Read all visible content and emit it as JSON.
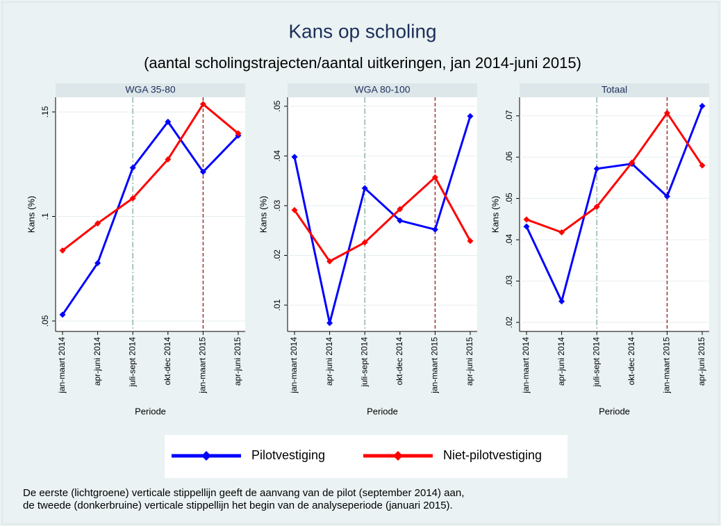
{
  "title": "Kans op scholing",
  "subtitle": "(aantal scholingstrajecten/aantal uitkeringen, jan 2014-juni 2015)",
  "note": [
    "De eerste (lichtgroene) verticale stippellijn geeft de aanvang van de pilot (september 2014) aan,",
    "de tweede (donkerbruine) verticale stippellijn het begin van de analyseperiode (januari 2015)."
  ],
  "chart_data": [
    {
      "type": "line",
      "title": "WGA 35-80",
      "xlabel": "Periode",
      "ylabel": "Kans (%)",
      "categories": [
        "jan-maart 2014",
        "apr-juni 2014",
        "juli-sept 2014",
        "okt-dec 2014",
        "jan-maart 2015",
        "apr-juni 2015"
      ],
      "series": [
        {
          "name": "Pilotvestiging",
          "color": "#0000ff",
          "values": [
            0.053,
            0.0777,
            0.1233,
            0.1453,
            0.1213,
            0.1387
          ]
        },
        {
          "name": "Niet-pilotvestiging",
          "color": "#ff0000",
          "values": [
            0.0837,
            0.0967,
            0.1087,
            0.1273,
            0.1537,
            0.1397
          ]
        }
      ],
      "ylim": [
        0.045,
        0.157
      ],
      "yticks": [
        {
          "value": 0.05,
          "label": ".05"
        },
        {
          "value": 0.1,
          "label": ".1"
        },
        {
          "value": 0.15,
          "label": ".15"
        }
      ],
      "grid": true,
      "vlines": [
        {
          "at": "juli-sept 2014",
          "color": "#7fa89c",
          "style": "dashdot"
        },
        {
          "at": "jan-maart 2015",
          "color": "#8b1a1a",
          "style": "dash"
        }
      ]
    },
    {
      "type": "line",
      "title": "WGA 80-100",
      "xlabel": "Periode",
      "ylabel": "Kans (%)",
      "categories": [
        "jan-maart 2014",
        "apr-juni 2014",
        "juli-sept 2014",
        "okt-dec 2014",
        "jan-maart 2015",
        "apr-juni 2015"
      ],
      "series": [
        {
          "name": "Pilotvestiging",
          "color": "#0000ff",
          "values": [
            0.0398,
            0.0064,
            0.0335,
            0.027,
            0.0252,
            0.048
          ]
        },
        {
          "name": "Niet-pilotvestiging",
          "color": "#ff0000",
          "values": [
            0.0291,
            0.0188,
            0.0226,
            0.0293,
            0.0357,
            0.0229
          ]
        }
      ],
      "ylim": [
        0.0047,
        0.0518
      ],
      "yticks": [
        {
          "value": 0.01,
          "label": ".01"
        },
        {
          "value": 0.02,
          "label": ".02"
        },
        {
          "value": 0.03,
          "label": ".03"
        },
        {
          "value": 0.04,
          "label": ".04"
        },
        {
          "value": 0.05,
          "label": ".05"
        }
      ],
      "grid": true,
      "vlines": [
        {
          "at": "juli-sept 2014",
          "color": "#7fa89c",
          "style": "dashdot"
        },
        {
          "at": "jan-maart 2015",
          "color": "#8b1a1a",
          "style": "dash"
        }
      ]
    },
    {
      "type": "line",
      "title": "Totaal",
      "xlabel": "Periode",
      "ylabel": "Kans (%)",
      "categories": [
        "jan-maart 2014",
        "apr-juni 2014",
        "juli-sept 2014",
        "okt-dec 2014",
        "jan-maart 2015",
        "apr-juni 2015"
      ],
      "series": [
        {
          "name": "Pilotvestiging",
          "color": "#0000ff",
          "values": [
            0.0432,
            0.0251,
            0.0572,
            0.0584,
            0.0505,
            0.0724
          ]
        },
        {
          "name": "Niet-pilotvestiging",
          "color": "#ff0000",
          "values": [
            0.0449,
            0.0418,
            0.048,
            0.0587,
            0.0707,
            0.058
          ]
        }
      ],
      "ylim": [
        0.0178,
        0.0745
      ],
      "yticks": [
        {
          "value": 0.02,
          "label": ".02"
        },
        {
          "value": 0.03,
          "label": ".03"
        },
        {
          "value": 0.04,
          "label": ".04"
        },
        {
          "value": 0.05,
          "label": ".05"
        },
        {
          "value": 0.06,
          "label": ".06"
        },
        {
          "value": 0.07,
          "label": ".07"
        }
      ],
      "grid": true,
      "vlines": [
        {
          "at": "juli-sept 2014",
          "color": "#7fa89c",
          "style": "dashdot"
        },
        {
          "at": "jan-maart 2015",
          "color": "#8b1a1a",
          "style": "dash"
        }
      ]
    }
  ]
}
